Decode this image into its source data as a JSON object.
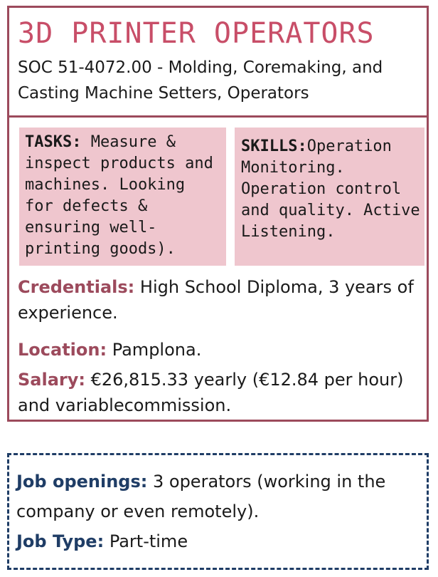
{
  "header": {
    "title": "3D PRINTER OPERATORS",
    "subtitle": "SOC 51-4072.00 - Molding, Coremaking, and Casting Machine Setters, Operators"
  },
  "tasks": {
    "label": "TASKS:",
    "text": " Measure & inspect products and machines. Looking for defects & ensuring well-printing goods)."
  },
  "skills": {
    "label": "SKILLS:",
    "text": "Operation Monitoring. Operation control and quality. Active Listening."
  },
  "credentials": {
    "label": "Credentials:",
    "text": " High School Diploma, 3 years of experience."
  },
  "location": {
    "label": "Location:",
    "text": " Pamplona."
  },
  "salary": {
    "label": "Salary:",
    "text": " €26,815.33 yearly (€12.84 per hour) and variablecommission."
  },
  "job": {
    "openings_label": "Job openings:",
    "openings_text": " 3 operators (working in the company or  even remotely).",
    "type_label": "Job Type:",
    "type_text": " Part-time"
  }
}
